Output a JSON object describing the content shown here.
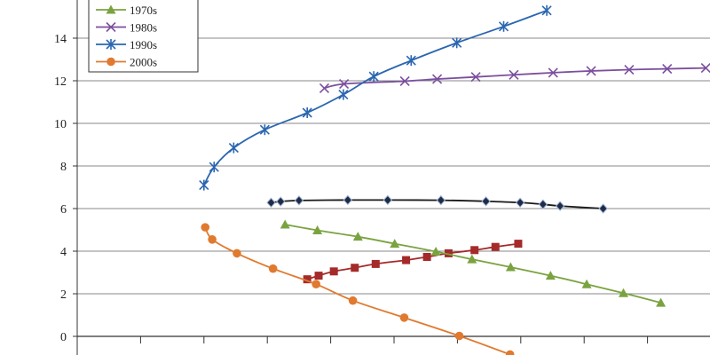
{
  "chart_data": {
    "type": "line",
    "title": "",
    "xlabel": "",
    "ylabel": "",
    "ylim": [
      0,
      16
    ],
    "yticks": [
      0,
      2,
      4,
      6,
      8,
      10,
      12,
      14
    ],
    "xlim": [
      0,
      10
    ],
    "grid": "horizontal",
    "legend_position": "top-left",
    "series": [
      {
        "key": "black",
        "color": "#1a1a1a",
        "marker": "diamond",
        "in_legend": false,
        "x": [
          3.06,
          3.21,
          3.5,
          4.27,
          4.9,
          5.74,
          6.45,
          6.99,
          7.35,
          7.62,
          8.3
        ],
        "y": [
          6.28,
          6.33,
          6.38,
          6.4,
          6.4,
          6.39,
          6.34,
          6.28,
          6.2,
          6.12,
          6.0
        ]
      },
      {
        "key": "red",
        "color": "#a52a2a",
        "marker": "square",
        "in_legend": false,
        "x": [
          3.63,
          3.81,
          4.05,
          4.38,
          4.71,
          5.19,
          5.52,
          5.86,
          6.27,
          6.6,
          6.96
        ],
        "y": [
          2.68,
          2.85,
          3.05,
          3.22,
          3.4,
          3.58,
          3.73,
          3.9,
          4.05,
          4.2,
          4.35
        ]
      },
      {
        "key": "green",
        "name": "1970s",
        "color": "#7aa340",
        "marker": "triangle",
        "in_legend": true,
        "x": [
          3.28,
          3.79,
          4.43,
          5.01,
          5.66,
          6.23,
          6.84,
          7.47,
          8.04,
          8.62,
          9.21
        ],
        "y": [
          5.25,
          4.98,
          4.68,
          4.35,
          3.98,
          3.62,
          3.25,
          2.85,
          2.45,
          2.03,
          1.58
        ]
      },
      {
        "key": "purple",
        "name": "1980s",
        "color": "#7b4f9e",
        "marker": "x",
        "in_legend": true,
        "x": [
          3.9,
          4.21,
          5.17,
          5.68,
          6.29,
          6.89,
          7.51,
          8.11,
          8.71,
          9.31,
          9.92
        ],
        "y": [
          11.65,
          11.85,
          11.98,
          12.08,
          12.18,
          12.28,
          12.38,
          12.46,
          12.52,
          12.56,
          12.6
        ]
      },
      {
        "key": "blue",
        "name": "1990s",
        "color": "#2a66b0",
        "marker": "star",
        "in_legend": true,
        "x": [
          2.0,
          2.16,
          2.47,
          2.96,
          3.63,
          4.2,
          4.68,
          5.27,
          5.99,
          6.73,
          7.41
        ],
        "y": [
          7.1,
          7.95,
          8.85,
          9.7,
          10.5,
          11.35,
          12.2,
          12.95,
          13.78,
          14.55,
          15.3
        ]
      },
      {
        "key": "orange",
        "name": "2000s",
        "color": "#e07a30",
        "marker": "circle",
        "in_legend": true,
        "x": [
          2.02,
          2.13,
          2.52,
          3.09,
          3.77,
          4.35,
          5.16,
          6.03,
          6.83
        ],
        "y": [
          5.12,
          4.55,
          3.9,
          3.18,
          2.45,
          1.68,
          0.88,
          0.02,
          -0.85
        ]
      }
    ]
  }
}
